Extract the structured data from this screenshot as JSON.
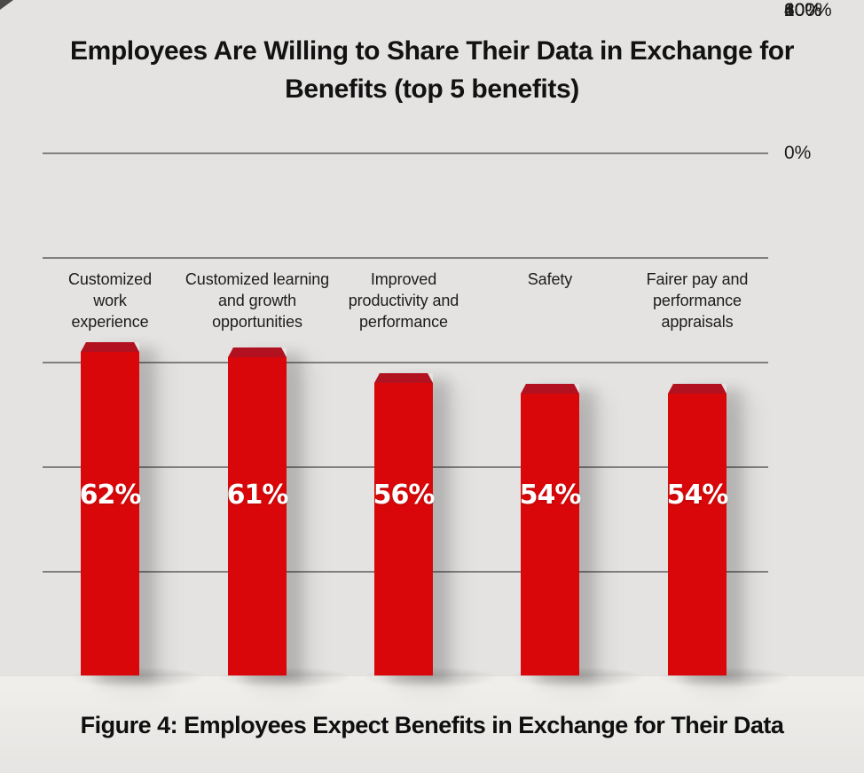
{
  "chart_data": {
    "type": "bar",
    "title": "Employees Are Willing to Share Their Data in Exchange for Benefits (top 5 benefits)",
    "categories": [
      "Customized work experience",
      "Customized learning and growth opportunities",
      "Improved productivity and performance",
      "Safety",
      "Fairer pay and performance appraisals"
    ],
    "values": [
      62,
      61,
      56,
      54,
      54
    ],
    "value_labels": [
      "62%",
      "61%",
      "56%",
      "54%",
      "54%"
    ],
    "xlabel": "",
    "ylabel": "",
    "ylim": [
      0,
      100
    ],
    "yticks": [
      100,
      80,
      60,
      40,
      20,
      0
    ],
    "ytick_labels": [
      "100%",
      "80%",
      "60%",
      "40%",
      "20%",
      "0%"
    ],
    "grid": "horizontal gridlines at 20/40/60/80/100, none at 0",
    "legend": "none",
    "bar_color": "#d90709",
    "bar_cap_color": "#b21120",
    "value_label_color": "#ffffff"
  },
  "caption": "Figure 4: Employees Expect Benefits in Exchange for Their Data",
  "colors": {
    "background": "#e4e3e1",
    "floor": "#edecea",
    "gridline": "#5f5f5f",
    "text": "#161616"
  }
}
